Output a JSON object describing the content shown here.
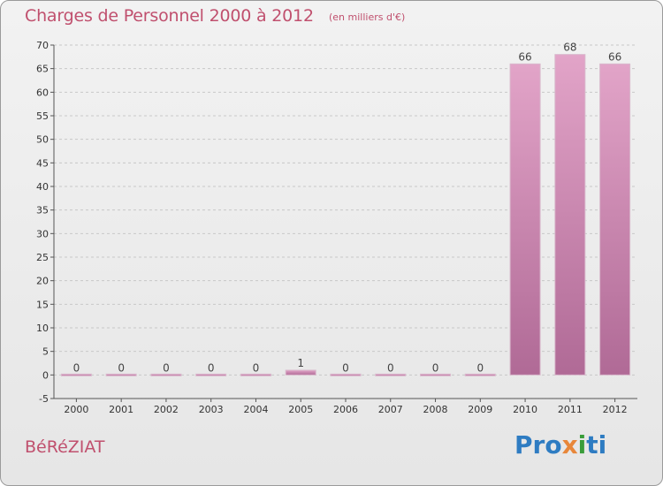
{
  "header": {
    "title": "Charges de Personnel 2000 à 2012",
    "subtitle": "(en milliers d'€)"
  },
  "footer": {
    "commune": "BéRéZIAT",
    "logo": {
      "p1": "Pro",
      "p2": "x",
      "p3": "i",
      "p4": "ti"
    }
  },
  "colors": {
    "bar_fill_top": "#e2a4c8",
    "bar_fill_bottom": "#b06a96",
    "bar_stroke": "#d9b8cc",
    "text": "#c0506e",
    "axis": "#555555"
  },
  "chart_data": {
    "type": "bar",
    "title": "Charges de Personnel 2000 à 2012",
    "subtitle": "(en milliers d'€)",
    "categories": [
      "2000",
      "2001",
      "2002",
      "2003",
      "2004",
      "2005",
      "2006",
      "2007",
      "2008",
      "2009",
      "2010",
      "2011",
      "2012"
    ],
    "values": [
      0,
      0,
      0,
      0,
      0,
      1,
      0,
      0,
      0,
      0,
      66,
      68,
      66
    ],
    "value_labels": [
      "0",
      "0",
      "0",
      "0",
      "0",
      "1",
      "0",
      "0",
      "0",
      "0",
      "66",
      "68",
      "66"
    ],
    "ylim": [
      -5,
      70
    ],
    "yticks": [
      -5,
      0,
      5,
      10,
      15,
      20,
      25,
      30,
      35,
      40,
      45,
      50,
      55,
      60,
      65,
      70
    ],
    "grid": true,
    "xlabel": "",
    "ylabel": ""
  }
}
